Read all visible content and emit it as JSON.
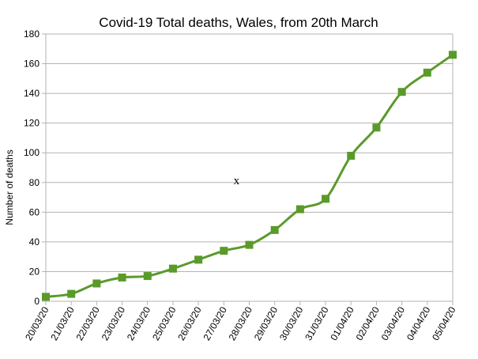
{
  "chart_data": {
    "type": "line",
    "title": "Covid-19 Total deaths, Wales, from 20th March",
    "xlabel": "",
    "ylabel": "Number of deaths",
    "ylim": [
      0,
      180
    ],
    "ytick_step": 20,
    "grid": true,
    "legend": "none",
    "line_color": "#5a9a2a",
    "marker_color": "#5a9a2a",
    "marker": "square",
    "categories": [
      "20/03/20",
      "21/03/20",
      "22/03/20",
      "23/03/20",
      "24/03/20",
      "25/03/20",
      "26/03/20",
      "27/03/20",
      "28/03/20",
      "29/03/20",
      "30/03/20",
      "31/03/20",
      "01/04/20",
      "02/04/20",
      "03/04/20",
      "04/04/20",
      "05/04/20"
    ],
    "series": [
      {
        "name": "Total deaths",
        "values": [
          3,
          5,
          12,
          16,
          17,
          22,
          28,
          34,
          38,
          48,
          62,
          69,
          98,
          117,
          141,
          154,
          166
        ]
      }
    ],
    "annotations": [
      {
        "text": "x",
        "x": "27/03/20",
        "y": 81
      }
    ]
  }
}
